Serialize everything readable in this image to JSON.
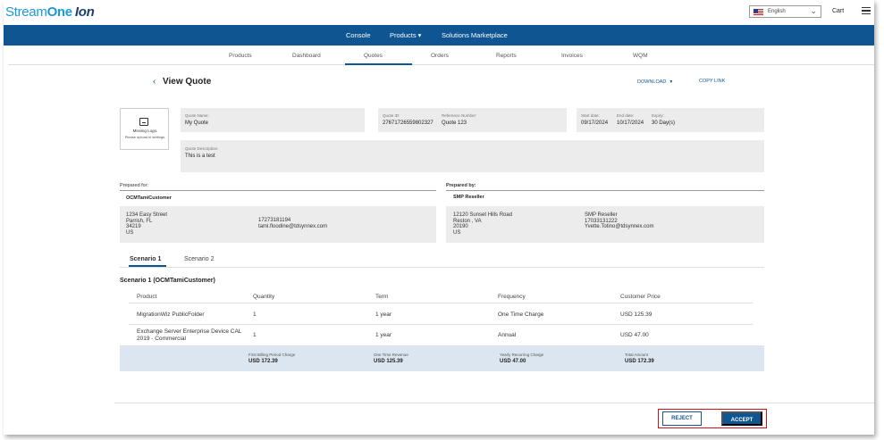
{
  "brand": {
    "part1": "Stream",
    "part2": "One",
    "part3": "Ion"
  },
  "header": {
    "language": "English",
    "cart": "Cart"
  },
  "nav": {
    "items": [
      "Console",
      "Products ▾",
      "Solutions Marketplace"
    ]
  },
  "subnav": {
    "items": [
      "Products",
      "Dashboard",
      "Quotes",
      "Orders",
      "Reports",
      "Invoices",
      "WQM"
    ],
    "active": "Quotes"
  },
  "page": {
    "title": "View Quote",
    "download": "DOWNLOAD",
    "copy_link": "COPY LINK"
  },
  "logo_placeholder": {
    "title": "Missing Logo.",
    "subtitle": "Please upload in settings."
  },
  "quote": {
    "name_label": "Quote Name:",
    "name": "My Quote",
    "id_label": "Quote ID:",
    "id": "27671726559802327",
    "ref_label": "Reference Number:",
    "ref": "Quote 123",
    "start_label": "Start date:",
    "start": "09/17/2024",
    "end_label": "End date:",
    "end": "10/17/2024",
    "expiry_label": "Expiry:",
    "expiry": "30 Day(s)",
    "desc_label": "Quote Description:",
    "desc": "This is a test"
  },
  "prepared_for": {
    "label": "Prepared for:",
    "company": "OCMTamiCustomer",
    "street": "1234 Easy Street",
    "city": "Parrish, FL",
    "zip": "34219",
    "country": "US",
    "phone": "17273181194",
    "email": "tami.floodine@tdsynnex.com"
  },
  "prepared_by": {
    "label": "Prepared by:",
    "company": "SMP Reseller",
    "street": "12120 Sunset Hills Road",
    "city": "Reston , VA",
    "zip": "20190",
    "country": "US",
    "contact": "SMP Reseller",
    "phone": "17033131222",
    "email": "Yvette.Totino@tdsynnex.com"
  },
  "tabs": [
    "Scenario 1",
    "Scenario 2"
  ],
  "scenario": {
    "title": "Scenario 1 (OCMTamiCustomer)",
    "headers": [
      "Product",
      "Quantity",
      "Term",
      "Frequency",
      "Customer Price"
    ],
    "rows": [
      {
        "product": "MigrationWiz PublicFolder",
        "quantity": "1",
        "term": "1 year",
        "frequency": "One Time Charge",
        "price": "USD 125.39"
      },
      {
        "product": "Exchange Server Enterprise Device CAL 2019 - Commercial",
        "quantity": "1",
        "term": "1 year",
        "frequency": "Annual",
        "price": "USD 47.00"
      }
    ],
    "summary": {
      "first_label": "First Billing Period Charge",
      "first": "USD 172.39",
      "onetime_label": "One Time Revenue",
      "onetime": "USD 125.39",
      "yearly_label": "Yearly Recurring Charge",
      "yearly": "USD 47.00",
      "total_label": "Total Amount",
      "total": "USD 172.39"
    }
  },
  "actions": {
    "reject": "REJECT",
    "accept": "ACCEPT"
  }
}
